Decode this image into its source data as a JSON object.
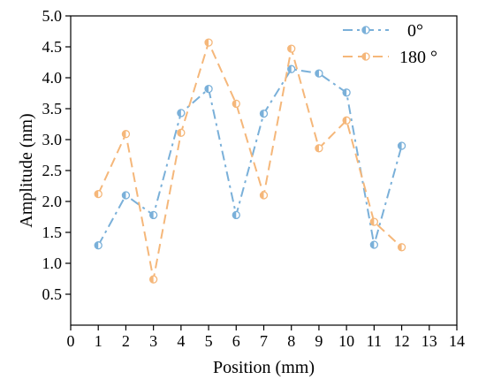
{
  "chart_data": {
    "type": "line",
    "xlabel": "Position (mm)",
    "ylabel": "Amplitude (nm)",
    "xlim": [
      0,
      14
    ],
    "ylim": [
      0.0,
      5.0
    ],
    "x_ticks": [
      "0",
      "1",
      "2",
      "3",
      "4",
      "5",
      "6",
      "7",
      "8",
      "9",
      "10",
      "11",
      "12",
      "13",
      "14"
    ],
    "y_ticks": [
      "0.5",
      "1.0",
      "1.5",
      "2.0",
      "2.5",
      "3.0",
      "3.5",
      "4.0",
      "4.5",
      "5.0"
    ],
    "grid": false,
    "legend_position": "top-right",
    "series": [
      {
        "name": "0°",
        "color": "#7ab0d9",
        "line_style": "dash-dot",
        "x": [
          1,
          2,
          3,
          4,
          5,
          6,
          7,
          8,
          9,
          10,
          11,
          12
        ],
        "values": [
          1.29,
          2.1,
          1.78,
          3.43,
          3.82,
          1.78,
          3.42,
          4.14,
          4.07,
          3.76,
          1.3,
          2.9
        ]
      },
      {
        "name": "180 °",
        "color": "#f5b77a",
        "line_style": "dashed",
        "x": [
          1,
          2,
          3,
          4,
          5,
          6,
          7,
          8,
          9,
          10,
          11,
          12
        ],
        "values": [
          2.12,
          3.09,
          0.74,
          3.11,
          4.57,
          3.58,
          2.1,
          4.47,
          2.86,
          3.31,
          1.67,
          1.26
        ]
      }
    ]
  }
}
